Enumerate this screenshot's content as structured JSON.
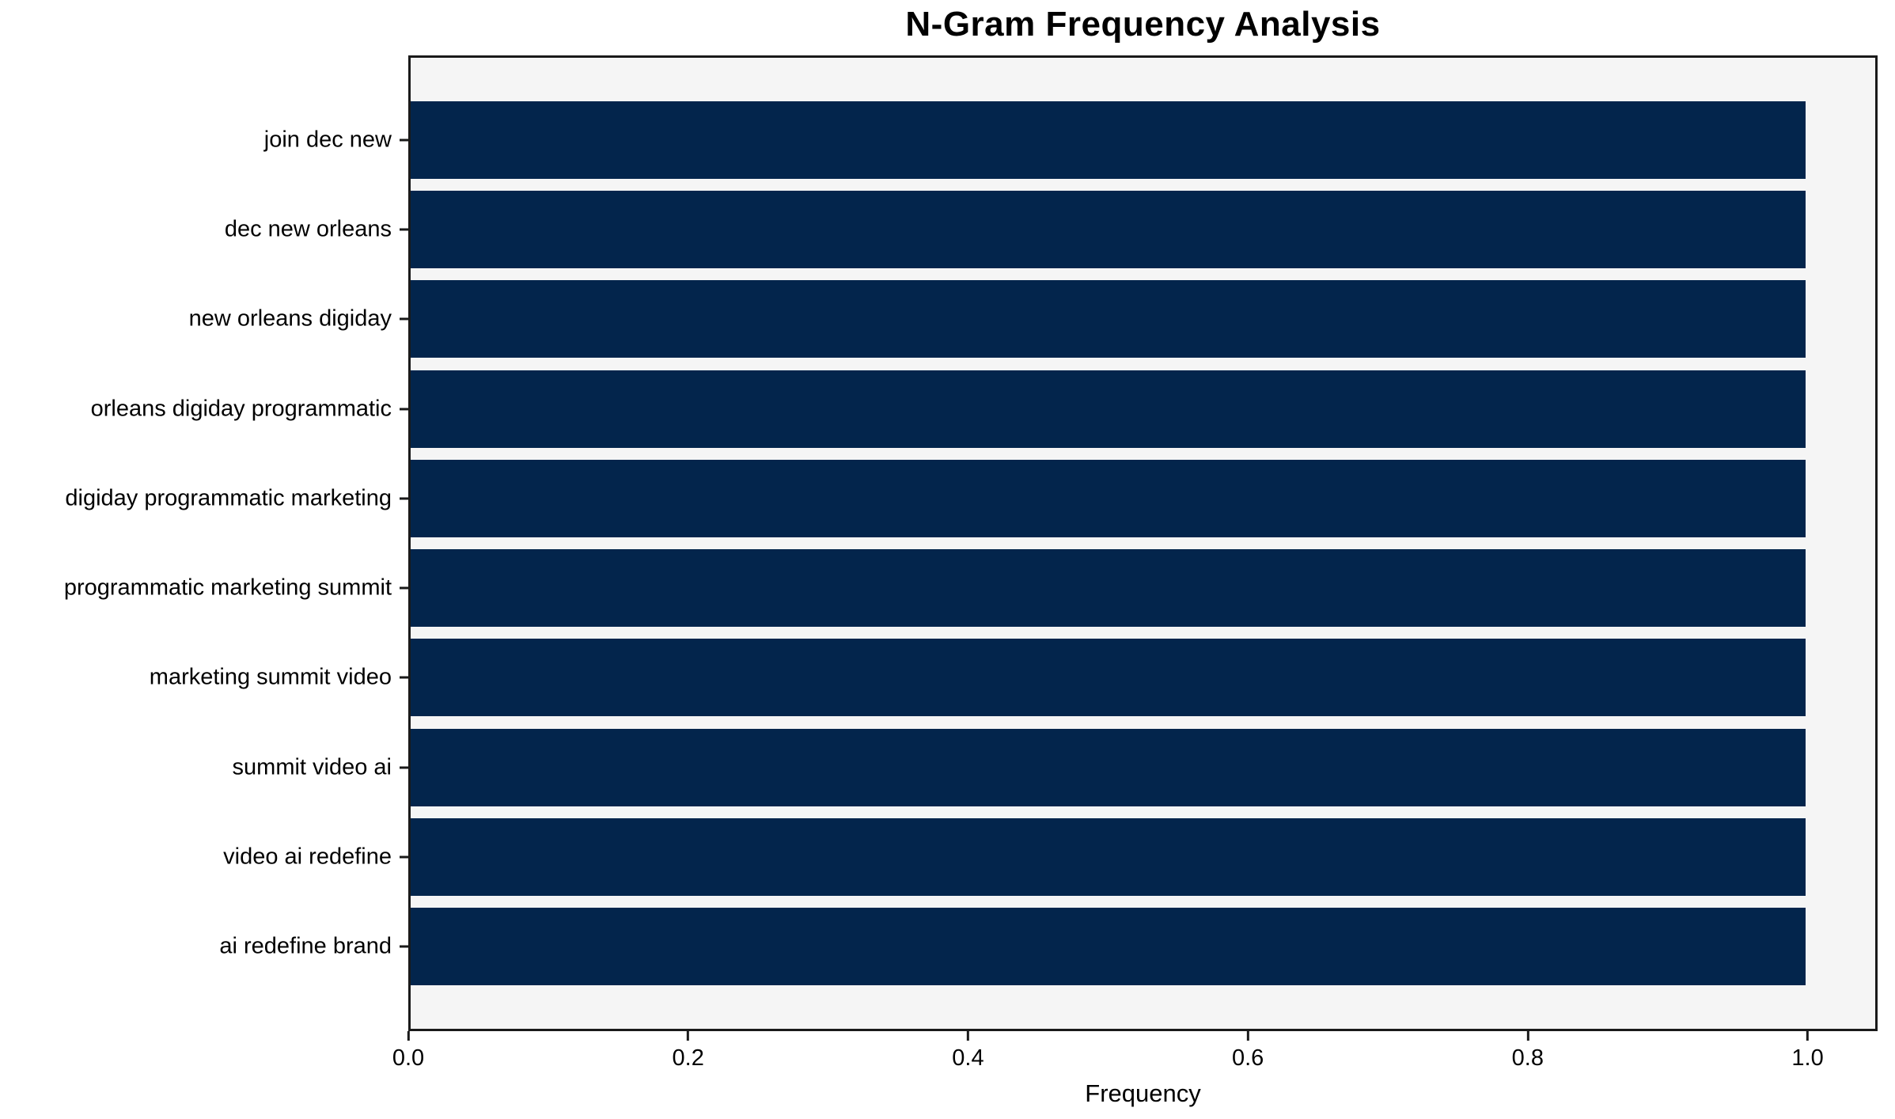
{
  "chart_data": {
    "type": "bar",
    "orientation": "horizontal",
    "title": "N-Gram Frequency Analysis",
    "xlabel": "Frequency",
    "ylabel": "",
    "categories": [
      "join dec new",
      "dec new orleans",
      "new orleans digiday",
      "orleans digiday programmatic",
      "digiday programmatic marketing",
      "programmatic marketing summit",
      "marketing summit video",
      "summit video ai",
      "video ai redefine",
      "ai redefine brand"
    ],
    "values": [
      1.0,
      1.0,
      1.0,
      1.0,
      1.0,
      1.0,
      1.0,
      1.0,
      1.0,
      1.0
    ],
    "xlim": [
      0,
      1.05
    ],
    "xticks": [
      0.0,
      0.2,
      0.4,
      0.6,
      0.8,
      1.0
    ],
    "xtick_labels": [
      "0.0",
      "0.2",
      "0.4",
      "0.6",
      "0.8",
      "1.0"
    ],
    "grid": false,
    "legend": false,
    "colors": {
      "bar": "#03254c",
      "plot_background": "#f5f5f5",
      "figure_background": "#ffffff",
      "text": "#000000",
      "spine": "#1a1a1a"
    }
  }
}
